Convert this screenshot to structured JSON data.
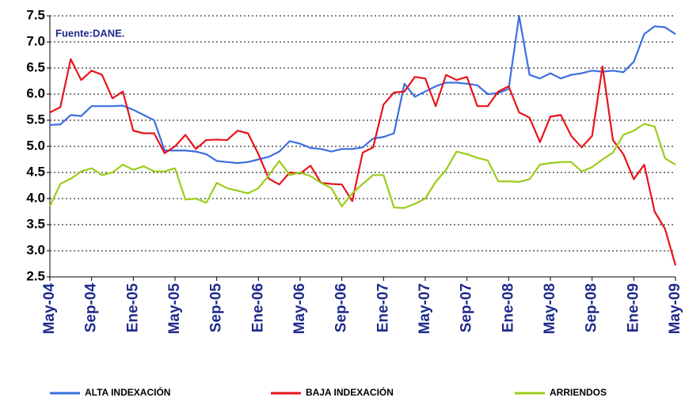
{
  "chart_data": {
    "type": "line",
    "annotation": "Fuente:DANE.",
    "categories": [
      "May-04",
      null,
      null,
      null,
      "Sep-04",
      null,
      null,
      null,
      "Ene-05",
      null,
      null,
      null,
      "May-05",
      null,
      null,
      null,
      "Sep-05",
      null,
      null,
      null,
      "Ene-06",
      null,
      null,
      null,
      "May-06",
      null,
      null,
      null,
      "Sep-06",
      null,
      null,
      null,
      "Ene-07",
      null,
      null,
      null,
      "May-07",
      null,
      null,
      null,
      "Sep-07",
      null,
      null,
      null,
      "Ene-08",
      null,
      null,
      null,
      "May-08",
      null,
      null,
      null,
      "Sep-08",
      null,
      null,
      null,
      "Ene-09",
      null,
      null,
      null,
      "May-09"
    ],
    "series": [
      {
        "name": "ALTA INDEXACIÓN",
        "color": "#3b6fe0",
        "values": [
          5.41,
          5.42,
          5.6,
          5.58,
          5.77,
          5.77,
          5.77,
          5.78,
          5.7,
          5.6,
          5.5,
          4.92,
          4.92,
          4.92,
          4.9,
          4.85,
          4.72,
          4.7,
          4.68,
          4.7,
          4.75,
          4.8,
          4.9,
          5.1,
          5.05,
          4.97,
          4.95,
          4.9,
          4.95,
          4.95,
          4.98,
          5.15,
          5.18,
          5.25,
          6.2,
          5.95,
          6.05,
          6.15,
          6.22,
          6.22,
          6.2,
          6.17,
          6.0,
          6.02,
          6.1,
          7.5,
          6.37,
          6.3,
          6.4,
          6.3,
          6.37,
          6.4,
          6.45,
          6.43,
          6.45,
          6.42,
          6.62,
          7.15,
          7.3,
          7.28,
          7.15
        ]
      },
      {
        "name": "BAJA INDEXACIÓN",
        "color": "#e8141b",
        "values": [
          5.65,
          5.75,
          6.67,
          6.27,
          6.45,
          6.37,
          5.92,
          6.05,
          5.3,
          5.25,
          5.25,
          4.87,
          5.0,
          5.22,
          4.95,
          5.12,
          5.13,
          5.12,
          5.3,
          5.25,
          4.85,
          4.38,
          4.27,
          4.5,
          4.48,
          4.63,
          4.3,
          4.28,
          4.27,
          3.95,
          4.88,
          4.98,
          5.8,
          6.03,
          6.05,
          6.33,
          6.3,
          5.77,
          6.37,
          6.27,
          6.33,
          5.77,
          5.77,
          6.05,
          6.15,
          5.65,
          5.55,
          5.08,
          5.57,
          5.6,
          5.2,
          4.98,
          5.2,
          6.53,
          5.12,
          4.85,
          4.37,
          4.65,
          3.75,
          3.42,
          2.72
        ]
      },
      {
        "name": "ARRIENDOS",
        "color": "#9acd1a",
        "values": [
          3.85,
          4.28,
          4.38,
          4.52,
          4.58,
          4.45,
          4.5,
          4.65,
          4.55,
          4.62,
          4.52,
          4.52,
          4.58,
          3.98,
          4.0,
          3.92,
          4.3,
          4.2,
          4.15,
          4.1,
          4.2,
          4.45,
          4.72,
          4.45,
          4.5,
          4.43,
          4.3,
          4.2,
          3.85,
          4.1,
          4.28,
          4.45,
          4.45,
          3.83,
          3.82,
          3.9,
          4.0,
          4.32,
          4.55,
          4.9,
          4.85,
          4.78,
          4.73,
          4.33,
          4.33,
          4.32,
          4.37,
          4.65,
          4.68,
          4.7,
          4.7,
          4.52,
          4.6,
          4.75,
          4.88,
          5.22,
          5.3,
          5.43,
          5.38,
          4.77,
          4.65
        ]
      }
    ],
    "ylim": [
      2.5,
      7.5
    ],
    "yticks": [
      2.5,
      {
        "value": 3,
        "label": "3.0"
      },
      3.5,
      {
        "value": 4,
        "label": "4.0"
      },
      4.5,
      {
        "value": 5,
        "label": "5.0"
      },
      5.5,
      {
        "value": 6,
        "label": "6.0"
      },
      6.5,
      {
        "value": 7,
        "label": "7.0"
      },
      7.5
    ],
    "grid": true
  }
}
